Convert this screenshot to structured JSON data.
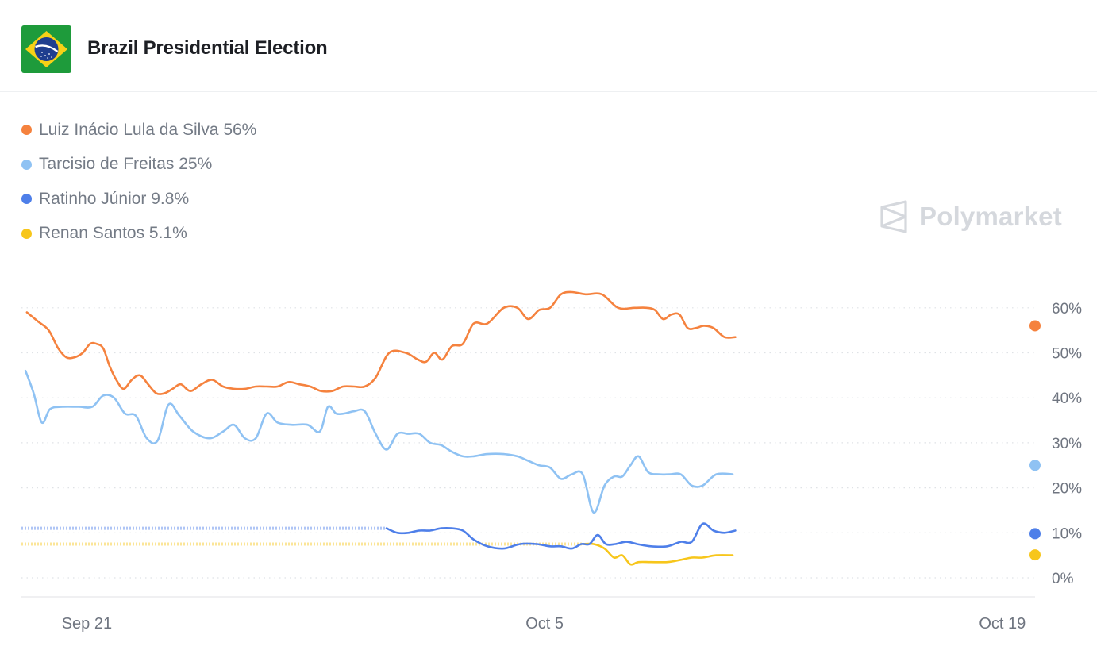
{
  "header": {
    "title": "Brazil Presidential Election",
    "flag_icon": "brazil-flag-icon"
  },
  "brand": {
    "name": "Polymarket",
    "icon": "polymarket-logo-icon"
  },
  "colors": {
    "lula": "#f5823e",
    "tarcisio": "#8fc2f3",
    "ratinho": "#4e7fe9",
    "renan": "#f7c61b",
    "grid": "#dfe2e6",
    "axis_text": "#6f7580"
  },
  "chart_data": {
    "type": "line",
    "title": "Brazil Presidential Election",
    "xlabel": "",
    "ylabel": "",
    "x_tick_labels": [
      "Sep 21",
      "Oct 5",
      "Oct 19"
    ],
    "x_tick_dates": [
      "2025-09-21",
      "2025-10-05",
      "2025-10-19"
    ],
    "x_range": [
      "2025-09-19",
      "2025-10-20"
    ],
    "y_tick_labels": [
      "60%",
      "50%",
      "40%",
      "30%",
      "20%",
      "10%",
      "0%"
    ],
    "y_ticks": [
      60,
      50,
      40,
      30,
      20,
      10,
      0
    ],
    "ylim": [
      0,
      60
    ],
    "grid": true,
    "legend_position": "top-left",
    "series": [
      {
        "name": "Luiz Inácio Lula da Silva",
        "label": "Luiz Inácio Lula da Silva 56%",
        "current": 56,
        "color": "#f5823e",
        "points": [
          [
            "2025-09-19",
            59
          ],
          [
            "2025-09-19",
            57
          ],
          [
            "2025-09-19",
            55
          ],
          [
            "2025-09-20",
            51
          ],
          [
            "2025-09-20",
            49
          ],
          [
            "2025-09-20",
            49
          ],
          [
            "2025-09-20",
            50
          ],
          [
            "2025-09-21",
            52
          ],
          [
            "2025-09-21",
            52
          ],
          [
            "2025-09-21",
            51
          ],
          [
            "2025-09-21",
            47
          ],
          [
            "2025-09-21",
            44
          ],
          [
            "2025-09-22",
            42
          ],
          [
            "2025-09-22",
            44
          ],
          [
            "2025-09-22",
            45
          ],
          [
            "2025-09-22",
            43
          ],
          [
            "2025-09-23",
            41
          ],
          [
            "2025-09-23",
            41
          ],
          [
            "2025-09-23",
            42
          ],
          [
            "2025-09-23",
            43
          ],
          [
            "2025-09-24",
            41.5
          ],
          [
            "2025-09-24",
            43
          ],
          [
            "2025-09-24",
            44
          ],
          [
            "2025-09-25",
            42.5
          ],
          [
            "2025-09-25",
            42
          ],
          [
            "2025-09-25",
            42
          ],
          [
            "2025-09-26",
            42.5
          ],
          [
            "2025-09-26",
            42.5
          ],
          [
            "2025-09-26",
            42.5
          ],
          [
            "2025-09-27",
            43.5
          ],
          [
            "2025-09-27",
            43
          ],
          [
            "2025-09-27",
            42.5
          ],
          [
            "2025-09-28",
            41.5
          ],
          [
            "2025-09-28",
            41.5
          ],
          [
            "2025-09-28",
            42.5
          ],
          [
            "2025-09-29",
            42.5
          ],
          [
            "2025-09-29",
            42.5
          ],
          [
            "2025-09-29",
            44.5
          ],
          [
            "2025-09-30",
            50
          ],
          [
            "2025-09-30",
            50
          ],
          [
            "2025-10-01",
            48.5
          ],
          [
            "2025-10-01",
            48
          ],
          [
            "2025-10-01",
            50
          ],
          [
            "2025-10-01",
            48.5
          ],
          [
            "2025-10-02",
            51.5
          ],
          [
            "2025-10-02",
            52
          ],
          [
            "2025-10-02",
            56.5
          ],
          [
            "2025-10-03",
            56.5
          ],
          [
            "2025-10-03",
            60
          ],
          [
            "2025-10-04",
            60
          ],
          [
            "2025-10-04",
            57.5
          ],
          [
            "2025-10-04",
            59.5
          ],
          [
            "2025-10-05",
            60
          ],
          [
            "2025-10-05",
            63
          ],
          [
            "2025-10-05",
            63.5
          ],
          [
            "2025-10-06",
            63
          ],
          [
            "2025-10-06",
            63
          ],
          [
            "2025-10-07",
            60
          ],
          [
            "2025-10-07",
            60
          ],
          [
            "2025-10-08",
            60
          ],
          [
            "2025-10-08",
            59.5
          ],
          [
            "2025-10-08",
            57.5
          ],
          [
            "2025-10-08",
            58.5
          ],
          [
            "2025-10-09",
            58.5
          ],
          [
            "2025-10-09",
            55.5
          ],
          [
            "2025-10-09",
            55.5
          ],
          [
            "2025-10-09",
            56
          ],
          [
            "2025-10-10",
            55.5
          ],
          [
            "2025-10-10",
            53.5
          ],
          [
            "2025-10-10",
            53.5
          ]
        ]
      },
      {
        "name": "Tarcisio de Freitas",
        "label": "Tarcisio de Freitas 25%",
        "current": 25,
        "color": "#8fc2f3",
        "points": [
          [
            "2025-09-19",
            46
          ],
          [
            "2025-09-19",
            41
          ],
          [
            "2025-09-19",
            34.5
          ],
          [
            "2025-09-19",
            37.5
          ],
          [
            "2025-09-20",
            38
          ],
          [
            "2025-09-20",
            38
          ],
          [
            "2025-09-21",
            38
          ],
          [
            "2025-09-21",
            40.5
          ],
          [
            "2025-09-21",
            40
          ],
          [
            "2025-09-22",
            36.5
          ],
          [
            "2025-09-22",
            36
          ],
          [
            "2025-09-22",
            31
          ],
          [
            "2025-09-23",
            30.5
          ],
          [
            "2025-09-23",
            38.5
          ],
          [
            "2025-09-23",
            36
          ],
          [
            "2025-09-24",
            32.5
          ],
          [
            "2025-09-24",
            31
          ],
          [
            "2025-09-25",
            32.5
          ],
          [
            "2025-09-25",
            34
          ],
          [
            "2025-09-25",
            31
          ],
          [
            "2025-09-26",
            31
          ],
          [
            "2025-09-26",
            36.5
          ],
          [
            "2025-09-26",
            34.5
          ],
          [
            "2025-09-27",
            34
          ],
          [
            "2025-09-27",
            34
          ],
          [
            "2025-09-28",
            32.5
          ],
          [
            "2025-09-28",
            38
          ],
          [
            "2025-09-28",
            36.5
          ],
          [
            "2025-09-28",
            36.5
          ],
          [
            "2025-09-29",
            37
          ],
          [
            "2025-09-29",
            37
          ],
          [
            "2025-09-29",
            32
          ],
          [
            "2025-09-30",
            28.5
          ],
          [
            "2025-09-30",
            32
          ],
          [
            "2025-09-30",
            32
          ],
          [
            "2025-10-01",
            32
          ],
          [
            "2025-10-01",
            30
          ],
          [
            "2025-10-01",
            29.5
          ],
          [
            "2025-10-02",
            28
          ],
          [
            "2025-10-02",
            27
          ],
          [
            "2025-10-02",
            27
          ],
          [
            "2025-10-03",
            27.5
          ],
          [
            "2025-10-03",
            27.5
          ],
          [
            "2025-10-04",
            27
          ],
          [
            "2025-10-04",
            26
          ],
          [
            "2025-10-04",
            25
          ],
          [
            "2025-10-05",
            24.5
          ],
          [
            "2025-10-05",
            22
          ],
          [
            "2025-10-05",
            23
          ],
          [
            "2025-10-06",
            23
          ],
          [
            "2025-10-06",
            14.5
          ],
          [
            "2025-10-06",
            20.5
          ],
          [
            "2025-10-07",
            22.5
          ],
          [
            "2025-10-07",
            22.5
          ],
          [
            "2025-10-07",
            25
          ],
          [
            "2025-10-07",
            27
          ],
          [
            "2025-10-08",
            23.5
          ],
          [
            "2025-10-08",
            23
          ],
          [
            "2025-10-08",
            23
          ],
          [
            "2025-10-09",
            23
          ],
          [
            "2025-10-09",
            20.5
          ],
          [
            "2025-10-09",
            20.5
          ],
          [
            "2025-10-10",
            23
          ],
          [
            "2025-10-10",
            23
          ]
        ]
      },
      {
        "name": "Ratinho Júnior",
        "label": "Ratinho Júnior 9.8%",
        "current": 9.8,
        "color": "#4e7fe9",
        "baseline_estimate": 11,
        "points": [
          [
            "2025-09-30",
            11
          ],
          [
            "2025-09-30",
            10
          ],
          [
            "2025-09-30",
            10
          ],
          [
            "2025-10-01",
            10.5
          ],
          [
            "2025-10-01",
            10.5
          ],
          [
            "2025-10-01",
            11
          ],
          [
            "2025-10-02",
            11
          ],
          [
            "2025-10-02",
            10.5
          ],
          [
            "2025-10-02",
            8.5
          ],
          [
            "2025-10-03",
            7
          ],
          [
            "2025-10-03",
            6.5
          ],
          [
            "2025-10-04",
            7.5
          ],
          [
            "2025-10-04",
            7.5
          ],
          [
            "2025-10-05",
            7
          ],
          [
            "2025-10-05",
            7
          ],
          [
            "2025-10-05",
            6.5
          ],
          [
            "2025-10-06",
            7.5
          ],
          [
            "2025-10-06",
            7.5
          ],
          [
            "2025-10-06",
            9.5
          ],
          [
            "2025-10-06",
            7.5
          ],
          [
            "2025-10-07",
            7.5
          ],
          [
            "2025-10-07",
            8
          ],
          [
            "2025-10-07",
            7.5
          ],
          [
            "2025-10-08",
            7
          ],
          [
            "2025-10-08",
            7
          ],
          [
            "2025-10-09",
            8
          ],
          [
            "2025-10-09",
            8
          ],
          [
            "2025-10-09",
            12
          ],
          [
            "2025-10-10",
            10.5
          ],
          [
            "2025-10-10",
            10
          ],
          [
            "2025-10-10",
            10.5
          ]
        ]
      },
      {
        "name": "Renan Santos",
        "label": "Renan Santos 5.1%",
        "current": 5.1,
        "color": "#f7c61b",
        "baseline_estimate": 7.5,
        "points": [
          [
            "2025-10-06",
            7.5
          ],
          [
            "2025-10-06",
            7.5
          ],
          [
            "2025-10-06",
            6.5
          ],
          [
            "2025-10-07",
            4.5
          ],
          [
            "2025-10-07",
            5
          ],
          [
            "2025-10-07",
            3
          ],
          [
            "2025-10-07",
            3.5
          ],
          [
            "2025-10-08",
            3.5
          ],
          [
            "2025-10-08",
            3.5
          ],
          [
            "2025-10-09",
            4
          ],
          [
            "2025-10-09",
            4.5
          ],
          [
            "2025-10-09",
            4.5
          ],
          [
            "2025-10-10",
            5
          ],
          [
            "2025-10-10",
            5
          ]
        ]
      }
    ]
  }
}
